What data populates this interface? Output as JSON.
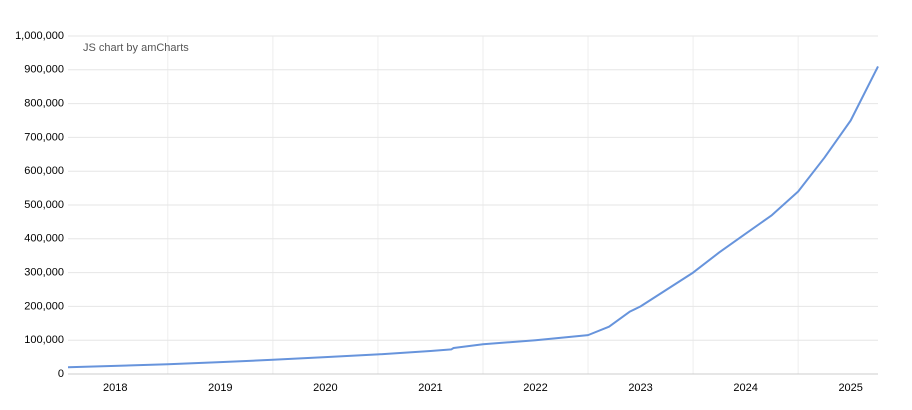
{
  "chart_data": {
    "type": "line",
    "credit": "JS chart by amCharts",
    "x": [
      2018.05,
      2018.5,
      2019.0,
      2019.5,
      2020.0,
      2020.5,
      2021.0,
      2021.5,
      2021.7,
      2021.72,
      2022.0,
      2022.5,
      2023.0,
      2023.2,
      2023.4,
      2023.5,
      2023.75,
      2024.0,
      2024.25,
      2024.5,
      2024.75,
      2025.0,
      2025.25,
      2025.5,
      2025.76
    ],
    "series": [
      {
        "color": "#6794dc",
        "values": [
          20000,
          24000,
          29000,
          35000,
          42000,
          50000,
          58000,
          68000,
          73000,
          77000,
          88000,
          100000,
          115000,
          140000,
          185000,
          200000,
          250000,
          300000,
          360000,
          415000,
          470000,
          540000,
          640000,
          750000,
          910000
        ]
      }
    ],
    "xlim": [
      2018.05,
      2025.76
    ],
    "xticks": [
      {
        "value": 2018.5,
        "label": "2018"
      },
      {
        "value": 2019.5,
        "label": "2019"
      },
      {
        "value": 2020.5,
        "label": "2020"
      },
      {
        "value": 2021.5,
        "label": "2021"
      },
      {
        "value": 2022.5,
        "label": "2022"
      },
      {
        "value": 2023.5,
        "label": "2023"
      },
      {
        "value": 2024.5,
        "label": "2024"
      },
      {
        "value": 2025.5,
        "label": "2025"
      }
    ],
    "xgrid_lines": [
      2019,
      2020,
      2021,
      2022,
      2023,
      2024,
      2025
    ],
    "ylim": [
      0,
      1000000
    ],
    "yticks": [
      0,
      {
        "value": 100000,
        "label": "100,000"
      },
      {
        "value": 200000,
        "label": "200,000"
      },
      {
        "value": 300000,
        "label": "300,000"
      },
      {
        "value": 400000,
        "label": "400,000"
      },
      {
        "value": 500000,
        "label": "500,000"
      },
      {
        "value": 600000,
        "label": "600,000"
      },
      {
        "value": 700000,
        "label": "700,000"
      },
      {
        "value": 800000,
        "label": "800,000"
      },
      {
        "value": 900000,
        "label": "900,000"
      },
      {
        "value": 1000000,
        "label": "1,000,000"
      }
    ],
    "grid": true
  }
}
